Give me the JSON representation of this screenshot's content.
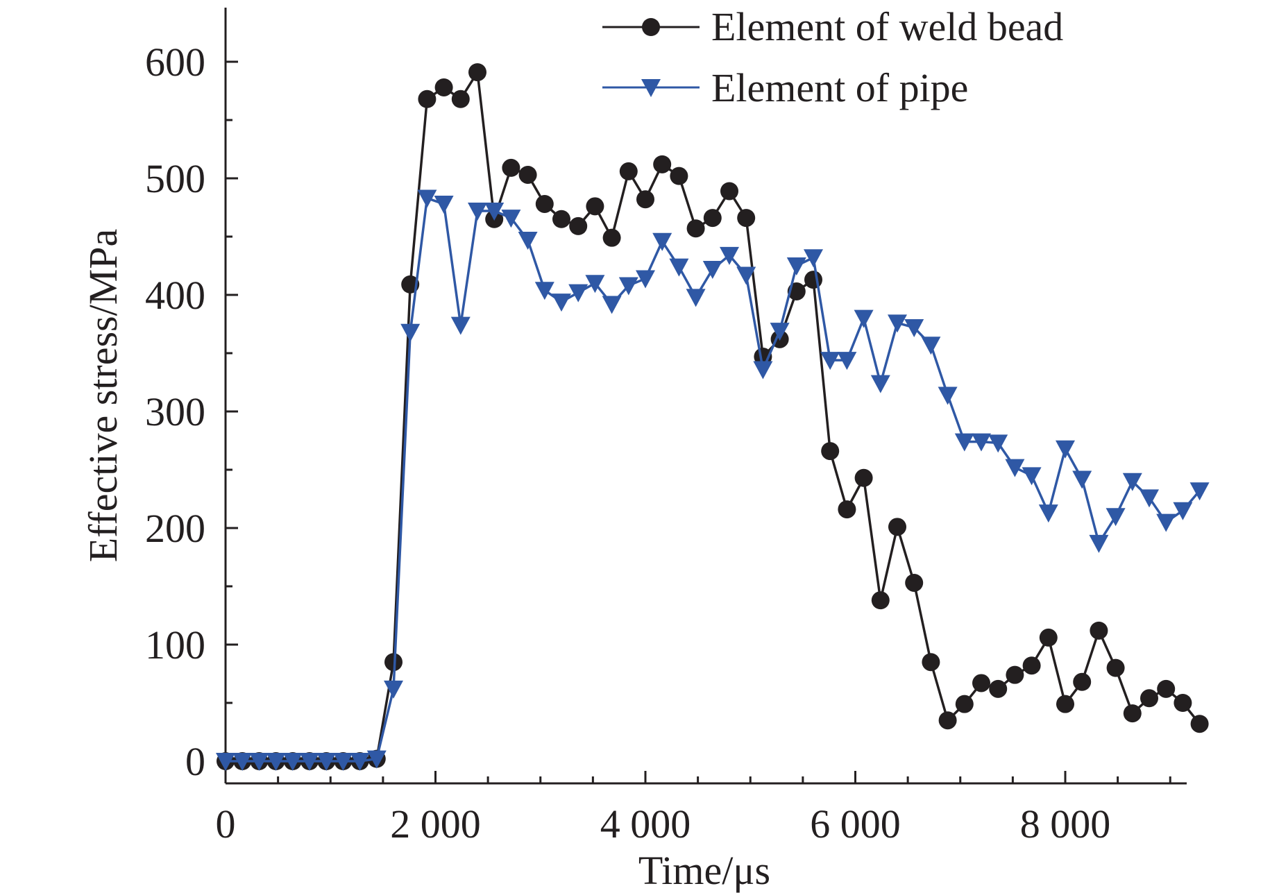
{
  "chart_data": {
    "type": "line",
    "title": "",
    "xlabel": "Time/μs",
    "ylabel": "Effective stress/MPa",
    "xlim": [
      -100,
      9200
    ],
    "ylim": [
      -20,
      650
    ],
    "xticks": [
      0,
      2000,
      4000,
      6000,
      8000
    ],
    "xtick_labels": [
      "0",
      "2 000",
      "4 000",
      "6 000",
      "8 000"
    ],
    "yticks": [
      0,
      100,
      200,
      300,
      400,
      500,
      600
    ],
    "ytick_labels": [
      "0",
      "100",
      "200",
      "300",
      "400",
      "500",
      "600"
    ],
    "grid": false,
    "legend_position": "top-right",
    "x": [
      0,
      160,
      320,
      480,
      640,
      800,
      960,
      1120,
      1280,
      1440,
      1600,
      1760,
      1920,
      2080,
      2240,
      2400,
      2560,
      2720,
      2880,
      3040,
      3200,
      3360,
      3520,
      3680,
      3840,
      4000,
      4160,
      4320,
      4480,
      4640,
      4800,
      4960,
      5120,
      5280,
      5440,
      5600,
      5760,
      5920,
      6080,
      6240,
      6400,
      6560,
      6720,
      6880,
      7040,
      7200,
      7360,
      7520,
      7680,
      7840,
      8000,
      8160,
      8320,
      8480,
      8640,
      8800,
      8960,
      9120,
      9280
    ],
    "series": [
      {
        "name": "Element of weld bead",
        "color": "#231f20",
        "marker": "circle",
        "values": [
          0,
          0,
          0,
          0,
          0,
          0,
          0,
          0,
          0,
          2,
          85,
          409,
          568,
          578,
          568,
          591,
          465,
          509,
          503,
          478,
          465,
          459,
          476,
          449,
          506,
          482,
          512,
          502,
          457,
          466,
          489,
          466,
          347,
          362,
          403,
          413,
          266,
          216,
          243,
          138,
          201,
          153,
          85,
          35,
          49,
          67,
          62,
          74,
          82,
          106,
          49,
          68,
          112,
          80,
          41,
          54,
          62,
          50,
          32
        ]
      },
      {
        "name": "Element of pipe",
        "color": "#2f58a5",
        "marker": "triangle-down",
        "values": [
          0,
          0,
          0,
          0,
          0,
          0,
          0,
          0,
          0,
          2,
          62,
          368,
          483,
          478,
          374,
          472,
          472,
          466,
          447,
          404,
          394,
          402,
          410,
          392,
          408,
          414,
          446,
          424,
          398,
          422,
          434,
          417,
          336,
          369,
          425,
          432,
          344,
          344,
          380,
          324,
          376,
          372,
          357,
          314,
          274,
          274,
          273,
          252,
          245,
          213,
          268,
          242,
          187,
          210,
          240,
          226,
          205,
          215,
          232
        ]
      }
    ]
  }
}
